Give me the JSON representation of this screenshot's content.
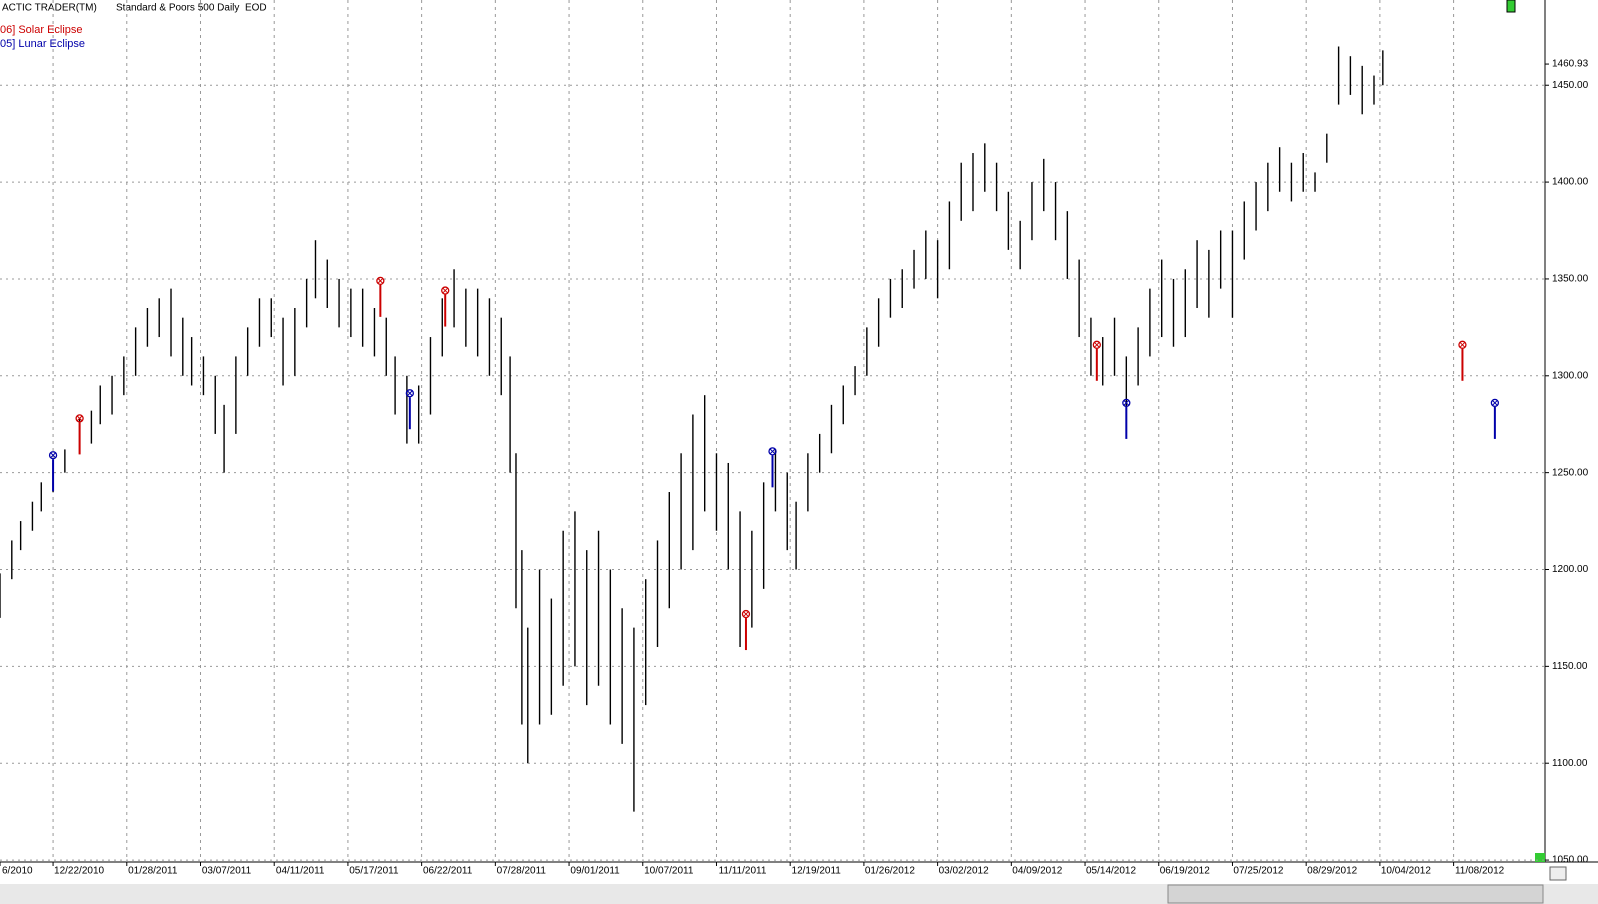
{
  "chart_data": {
    "type": "hl-bar",
    "title": "ACTIC TRADER(TM)",
    "subtitle": "Standard & Poors 500 Daily  EOD",
    "color": "#000000",
    "grid": true,
    "xlim": [
      0,
      524
    ],
    "xticks": [
      {
        "value": 0,
        "label": "6/2010"
      },
      {
        "value": 18,
        "label": "12/22/2010"
      },
      {
        "value": 43,
        "label": "01/28/2011"
      },
      {
        "value": 68,
        "label": "03/07/2011"
      },
      {
        "value": 93,
        "label": "04/11/2011"
      },
      {
        "value": 118,
        "label": "05/17/2011"
      },
      {
        "value": 143,
        "label": "06/22/2011"
      },
      {
        "value": 168,
        "label": "07/28/2011"
      },
      {
        "value": 193,
        "label": "09/01/2011"
      },
      {
        "value": 218,
        "label": "10/07/2011"
      },
      {
        "value": 243,
        "label": "11/11/2011"
      },
      {
        "value": 268,
        "label": "12/19/2011"
      },
      {
        "value": 293,
        "label": "01/26/2012"
      },
      {
        "value": 318,
        "label": "03/02/2012"
      },
      {
        "value": 343,
        "label": "04/09/2012"
      },
      {
        "value": 368,
        "label": "05/14/2012"
      },
      {
        "value": 393,
        "label": "06/19/2012"
      },
      {
        "value": 418,
        "label": "07/25/2012"
      },
      {
        "value": 443,
        "label": "08/29/2012"
      },
      {
        "value": 468,
        "label": "10/04/2012"
      },
      {
        "value": 493,
        "label": "11/08/2012"
      }
    ],
    "ylim": [
      1049,
      1494
    ],
    "yticks": [
      {
        "value": 1050,
        "label": "1050.00"
      },
      {
        "value": 1100,
        "label": "1100.00"
      },
      {
        "value": 1150,
        "label": "1150.00"
      },
      {
        "value": 1200,
        "label": "1200.00"
      },
      {
        "value": 1250,
        "label": "1250.00"
      },
      {
        "value": 1300,
        "label": "1300.00"
      },
      {
        "value": 1350,
        "label": "1350.00"
      },
      {
        "value": 1400,
        "label": "1400.00"
      },
      {
        "value": 1450,
        "label": "1450.00"
      }
    ],
    "last_price": 1460.93,
    "x": [
      0,
      4,
      7,
      11,
      14,
      18,
      22,
      27,
      31,
      34,
      38,
      42,
      46,
      50,
      54,
      58,
      62,
      65,
      69,
      73,
      76,
      80,
      84,
      88,
      92,
      96,
      100,
      104,
      107,
      111,
      115,
      119,
      123,
      127,
      131,
      134,
      138,
      142,
      146,
      150,
      154,
      158,
      162,
      166,
      170,
      173,
      175,
      177,
      179,
      183,
      187,
      191,
      195,
      199,
      203,
      207,
      211,
      215,
      219,
      223,
      227,
      231,
      235,
      239,
      243,
      247,
      251,
      255,
      259,
      263,
      267,
      270,
      274,
      278,
      282,
      286,
      290,
      294,
      298,
      302,
      306,
      310,
      314,
      318,
      322,
      326,
      330,
      334,
      338,
      342,
      346,
      350,
      354,
      358,
      362,
      366,
      370,
      374,
      378,
      382,
      386,
      390,
      394,
      398,
      402,
      406,
      410,
      414,
      418,
      422,
      426,
      430,
      434,
      438,
      442,
      446,
      450,
      454,
      458,
      462,
      466,
      469
    ],
    "high": [
      1198,
      1215,
      1225,
      1235,
      1245,
      1255,
      1262,
      1278,
      1282,
      1295,
      1300,
      1310,
      1325,
      1335,
      1340,
      1345,
      1330,
      1320,
      1310,
      1300,
      1285,
      1310,
      1325,
      1340,
      1340,
      1330,
      1335,
      1350,
      1370,
      1360,
      1350,
      1345,
      1345,
      1335,
      1330,
      1310,
      1300,
      1295,
      1320,
      1340,
      1355,
      1345,
      1345,
      1340,
      1330,
      1310,
      1260,
      1210,
      1170,
      1200,
      1185,
      1220,
      1230,
      1210,
      1220,
      1200,
      1180,
      1170,
      1195,
      1215,
      1240,
      1260,
      1280,
      1290,
      1260,
      1255,
      1230,
      1220,
      1245,
      1262,
      1250,
      1235,
      1260,
      1270,
      1285,
      1295,
      1305,
      1325,
      1340,
      1350,
      1355,
      1365,
      1375,
      1370,
      1390,
      1410,
      1415,
      1420,
      1410,
      1395,
      1380,
      1400,
      1412,
      1400,
      1385,
      1360,
      1330,
      1320,
      1330,
      1310,
      1325,
      1345,
      1360,
      1350,
      1355,
      1370,
      1365,
      1375,
      1375,
      1390,
      1400,
      1410,
      1418,
      1410,
      1415,
      1405,
      1425,
      1470,
      1465,
      1460,
      1455,
      1468
    ],
    "low": [
      1175,
      1195,
      1210,
      1220,
      1230,
      1240,
      1250,
      1260,
      1265,
      1275,
      1280,
      1290,
      1300,
      1315,
      1320,
      1310,
      1300,
      1295,
      1290,
      1270,
      1250,
      1270,
      1300,
      1315,
      1320,
      1295,
      1300,
      1325,
      1340,
      1335,
      1325,
      1320,
      1315,
      1310,
      1300,
      1280,
      1265,
      1265,
      1280,
      1310,
      1325,
      1315,
      1310,
      1300,
      1290,
      1250,
      1180,
      1120,
      1100,
      1120,
      1125,
      1140,
      1150,
      1130,
      1140,
      1120,
      1110,
      1075,
      1130,
      1160,
      1180,
      1200,
      1210,
      1230,
      1220,
      1200,
      1160,
      1170,
      1190,
      1230,
      1210,
      1200,
      1230,
      1250,
      1260,
      1275,
      1290,
      1300,
      1315,
      1330,
      1335,
      1345,
      1350,
      1340,
      1355,
      1380,
      1385,
      1395,
      1385,
      1365,
      1355,
      1370,
      1385,
      1370,
      1350,
      1320,
      1300,
      1295,
      1300,
      1270,
      1295,
      1310,
      1320,
      1315,
      1320,
      1335,
      1330,
      1345,
      1330,
      1360,
      1375,
      1385,
      1395,
      1390,
      1395,
      1395,
      1410,
      1440,
      1445,
      1435,
      1440,
      1450
    ],
    "series": [
      {
        "name": "06] Solar Eclipse",
        "color": "#cc0000",
        "x": [
          27,
          129,
          151,
          253,
          372,
          496
        ],
        "values": [
          1278,
          1349,
          1344,
          1177,
          1316,
          1316
        ]
      },
      {
        "name": "05] Lunar Eclipse",
        "color": "#0000aa",
        "x": [
          18,
          139,
          262,
          382,
          507
        ],
        "values": [
          1259,
          1291,
          1261,
          1286,
          1286
        ]
      }
    ]
  }
}
